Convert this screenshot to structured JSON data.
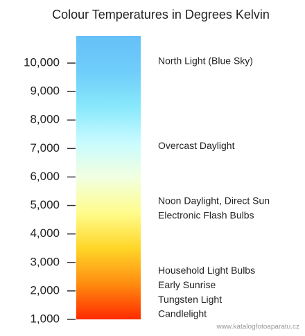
{
  "chart_data": {
    "type": "scale",
    "title": "Colour Temperatures in Degrees Kelvin",
    "ylim": [
      1000,
      10950
    ],
    "yticks": [
      {
        "value": 1000,
        "label": "1,000"
      },
      {
        "value": 2000,
        "label": "2,000"
      },
      {
        "value": 3000,
        "label": "3,000"
      },
      {
        "value": 4000,
        "label": "4,000"
      },
      {
        "value": 5000,
        "label": "5,000"
      },
      {
        "value": 6000,
        "label": "6,000"
      },
      {
        "value": 7000,
        "label": "7,000"
      },
      {
        "value": 8000,
        "label": "8,000"
      },
      {
        "value": 9000,
        "label": "9,000"
      },
      {
        "value": 10000,
        "label": "10,000"
      }
    ],
    "colors": [
      "#ff2a00",
      "#ff8c10",
      "#ffd628",
      "#fffc8c",
      "#f2ffe0",
      "#c8fbff",
      "#88e8fb",
      "#6fcdfa",
      "#66c0f8"
    ],
    "annotations": [
      {
        "label": "North Light (Blue Sky)",
        "value": 10050
      },
      {
        "label": "Overcast Daylight",
        "value": 7080
      },
      {
        "label": "Noon Daylight, Direct Sun",
        "value": 5140
      },
      {
        "label": "Electronic Flash Bulbs",
        "value": 4630
      },
      {
        "label": "Household Light Bulbs",
        "value": 2690
      },
      {
        "label": "Early Sunrise",
        "value": 2180
      },
      {
        "label": "Tungsten Light",
        "value": 1670
      },
      {
        "label": "Candlelight",
        "value": 1180
      }
    ],
    "watermark": "www.katalogfotoaparatu.cz"
  }
}
